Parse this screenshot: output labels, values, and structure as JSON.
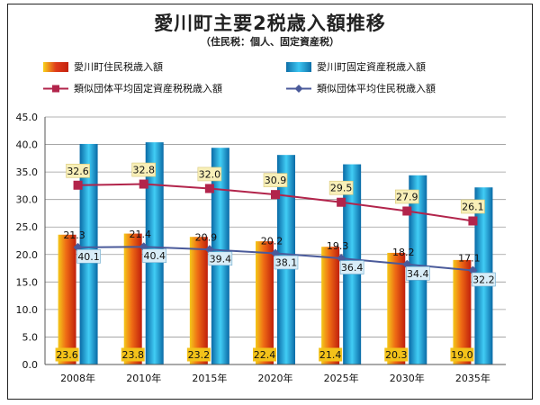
{
  "title": "愛川町主要2税歳入額推移",
  "subtitle": "（住民税：個人、固定資産税）",
  "legend": [
    {
      "name": "愛川町住民税歳入額",
      "kind": "bar",
      "color": "#e03c1a"
    },
    {
      "name": "愛川町固定資産税歳入額",
      "kind": "bar",
      "color": "#1ea7e0"
    },
    {
      "name": "類似団体平均固定資産税税歳入額",
      "kind": "line",
      "color": "#b2244b"
    },
    {
      "name": "類似団体平均住民税歳入額",
      "kind": "line",
      "color": "#4a5a9a"
    }
  ],
  "chart_data": {
    "type": "bar",
    "categories": [
      "2008年",
      "2010年",
      "2015年",
      "2020年",
      "2025年",
      "2030年",
      "2035年"
    ],
    "ylim": [
      0,
      45
    ],
    "yticks": [
      "0.0",
      "5.0",
      "10.0",
      "15.0",
      "20.0",
      "25.0",
      "30.0",
      "35.0",
      "40.0",
      "45.0"
    ],
    "grid": true,
    "series": [
      {
        "name": "愛川町住民税歳入額",
        "type": "bar",
        "values": [
          23.6,
          23.8,
          23.2,
          22.4,
          21.4,
          20.3,
          19.0
        ],
        "labels": [
          "23.6",
          "23.8",
          "23.2",
          "22.4",
          "21.4",
          "20.3",
          "19.0"
        ]
      },
      {
        "name": "愛川町固定資産税歳入額",
        "type": "bar",
        "values": [
          40.1,
          40.4,
          39.4,
          38.1,
          36.4,
          34.4,
          32.2
        ],
        "labels": [
          "40.1",
          "40.4",
          "39.4",
          "38.1",
          "36.4",
          "34.4",
          "32.2"
        ]
      },
      {
        "name": "類似団体平均固定資産税税歳入額",
        "type": "line",
        "values": [
          32.6,
          32.8,
          32.0,
          30.9,
          29.5,
          27.9,
          26.1
        ],
        "labels": [
          "32.6",
          "32.8",
          "32.0",
          "30.9",
          "29.5",
          "27.9",
          "26.1"
        ]
      },
      {
        "name": "類似団体平均住民税歳入額",
        "type": "line",
        "values": [
          21.3,
          21.4,
          20.9,
          20.2,
          19.3,
          18.2,
          17.1
        ],
        "labels": [
          "21.3",
          "21.4",
          "20.9",
          "20.2",
          "19.3",
          "18.2",
          "17.1"
        ]
      }
    ]
  }
}
